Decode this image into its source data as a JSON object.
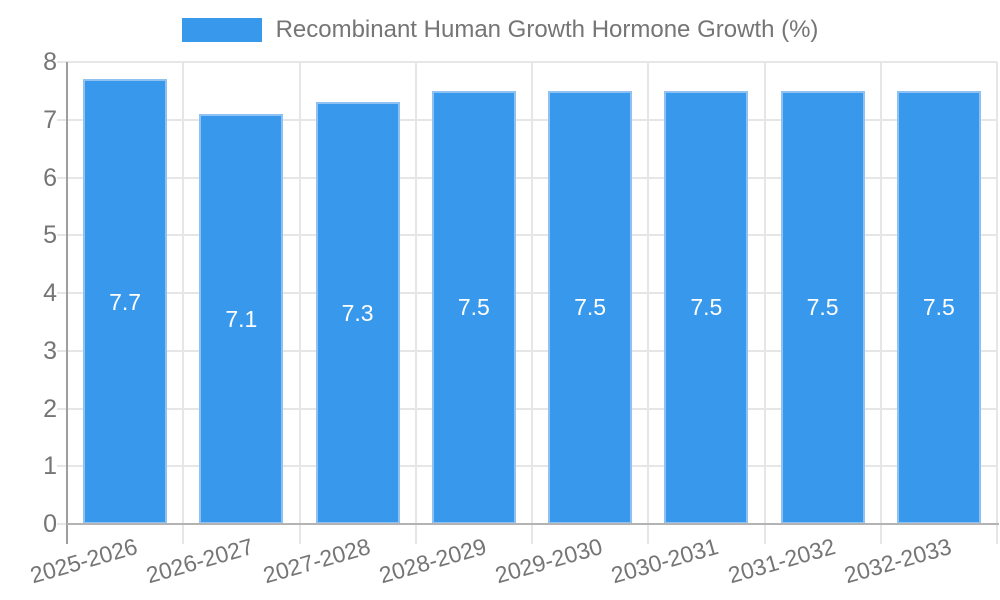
{
  "legend": {
    "label": "Recombinant Human Growth Hormone Growth (%)",
    "position": "top"
  },
  "colors": {
    "bar_fill": "#3899EC",
    "bar_border": "#8FC2F2",
    "grid": "#E6E6E6",
    "y_axis_line": "#9E9E9E",
    "baseline": "#B3B3B3",
    "tick_text": "#757575",
    "value_text": "#FFFFFF",
    "background": "#FFFFFF"
  },
  "chart_data": {
    "type": "bar",
    "title": "",
    "series_name": "Recombinant Human Growth Hormone Growth (%)",
    "categories": [
      "2025-2026",
      "2026-2027",
      "2027-2028",
      "2028-2029",
      "2029-2030",
      "2030-2031",
      "2031-2032",
      "2032-2033"
    ],
    "values": [
      7.7,
      7.1,
      7.3,
      7.5,
      7.5,
      7.5,
      7.5,
      7.5
    ],
    "value_labels": [
      "7.7",
      "7.1",
      "7.3",
      "7.5",
      "7.5",
      "7.5",
      "7.5",
      "7.5"
    ],
    "xlabel": "",
    "ylabel": "",
    "ylim": [
      0,
      8
    ],
    "ytick_step": 1,
    "ytick_labels": [
      "0",
      "1",
      "2",
      "3",
      "4",
      "5",
      "6",
      "7",
      "8"
    ],
    "grid": true,
    "legend_position": "top",
    "bar_color": "#3899EC",
    "x_label_rotation_deg": -16
  }
}
